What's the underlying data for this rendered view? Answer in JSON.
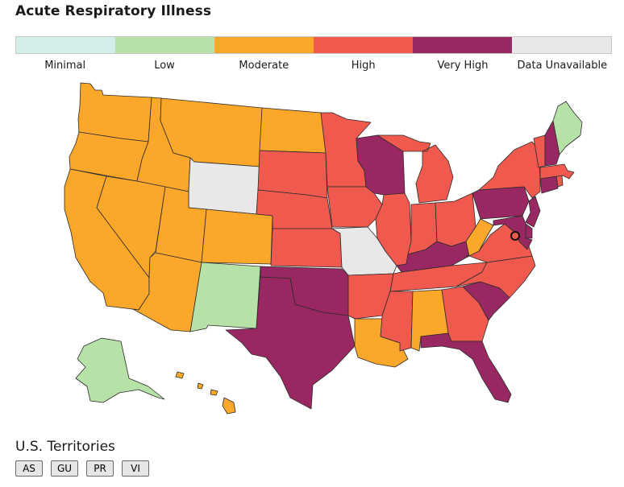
{
  "title": "Acute Respiratory Illness",
  "legend": [
    {
      "label": "Minimal",
      "color": "#d3ede8"
    },
    {
      "label": "Low",
      "color": "#b6e2a8"
    },
    {
      "label": "Moderate",
      "color": "#fba72a"
    },
    {
      "label": "High",
      "color": "#f05a4e"
    },
    {
      "label": "Very High",
      "color": "#992862"
    },
    {
      "label": "Data Unavailable",
      "color": "#e8e8e8"
    }
  ],
  "territories": {
    "title": "U.S. Territories",
    "buttons": [
      "AS",
      "GU",
      "PR",
      "VI"
    ]
  },
  "states": {
    "WA": "Moderate",
    "OR": "Moderate",
    "CA": "Moderate",
    "ID": "Moderate",
    "NV": "Moderate",
    "MT": "Moderate",
    "WY": "Data Unavailable",
    "UT": "Moderate",
    "AZ": "Moderate",
    "CO": "Moderate",
    "NM": "Low",
    "ND": "Moderate",
    "SD": "High",
    "NE": "High",
    "KS": "High",
    "OK": "Very High",
    "TX": "Very High",
    "MN": "High",
    "IA": "High",
    "MO": "Data Unavailable",
    "AR": "High",
    "LA": "Moderate",
    "WI": "Very High",
    "IL": "High",
    "MI": "High",
    "IN": "High",
    "OH": "High",
    "KY": "Very High",
    "TN": "High",
    "MS": "High",
    "AL": "Moderate",
    "GA": "High",
    "FL": "Very High",
    "SC": "Very High",
    "NC": "High",
    "VA": "High",
    "WV": "Moderate",
    "PA": "Very High",
    "NY": "High",
    "VT": "High",
    "NH": "Very High",
    "ME": "Low",
    "MA": "High",
    "CT": "Very High",
    "RI": "High",
    "NJ": "Very High",
    "DE": "Very High",
    "MD": "Very High",
    "DC": "High",
    "AK": "Low",
    "HI": "Moderate"
  }
}
